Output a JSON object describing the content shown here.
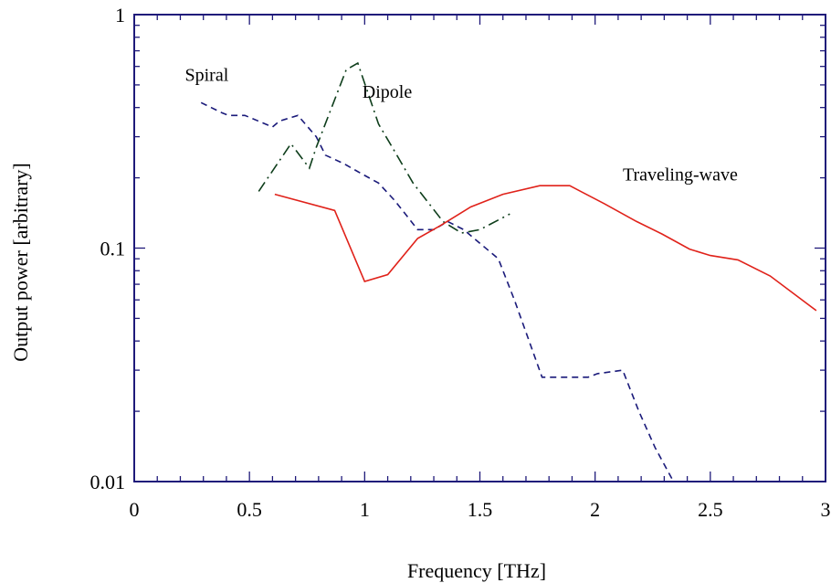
{
  "chart_data": {
    "type": "line",
    "title": "",
    "xlabel": "Frequency [THz]",
    "ylabel": "Output power [arbitrary]",
    "xlim": [
      0,
      3
    ],
    "ylim": [
      0.01,
      1
    ],
    "yscale": "log",
    "grid": false,
    "x_ticks": [
      {
        "v": 0,
        "label": "0"
      },
      {
        "v": 0.5,
        "label": "0.5"
      },
      {
        "v": 1,
        "label": "1"
      },
      {
        "v": 1.5,
        "label": "1.5"
      },
      {
        "v": 2,
        "label": "2"
      },
      {
        "v": 2.5,
        "label": "2.5"
      },
      {
        "v": 3,
        "label": "3"
      }
    ],
    "y_ticks": [
      {
        "v": 0.01,
        "label": "0.01"
      },
      {
        "v": 0.1,
        "label": "0.1"
      },
      {
        "v": 1,
        "label": "1"
      }
    ],
    "series": [
      {
        "name": "Spiral",
        "color": "#1a1a7a",
        "dash": "dashed",
        "x": [
          0.29,
          0.38,
          0.41,
          0.48,
          0.51,
          0.6,
          0.63,
          0.71,
          0.79,
          0.83,
          0.91,
          0.98,
          1.06,
          1.13,
          1.23,
          1.3,
          1.36,
          1.43,
          1.58,
          1.65,
          1.77,
          1.97,
          2.01,
          2.12,
          2.19,
          2.26,
          2.34
        ],
        "y": [
          0.42,
          0.38,
          0.37,
          0.37,
          0.36,
          0.33,
          0.35,
          0.37,
          0.3,
          0.25,
          0.23,
          0.21,
          0.19,
          0.16,
          0.12,
          0.12,
          0.13,
          0.12,
          0.09,
          0.06,
          0.028,
          0.028,
          0.029,
          0.03,
          0.02,
          0.014,
          0.01
        ]
      },
      {
        "name": "Dipole",
        "color": "#0d3d1a",
        "dash": "dashdot",
        "x": [
          0.54,
          0.68,
          0.76,
          0.79,
          0.92,
          0.97,
          1.06,
          1.13,
          1.21,
          1.34,
          1.42,
          1.5,
          1.63
        ],
        "y": [
          0.175,
          0.28,
          0.22,
          0.27,
          0.58,
          0.62,
          0.34,
          0.26,
          0.19,
          0.13,
          0.116,
          0.12,
          0.14
        ]
      },
      {
        "name": "Traveling-wave",
        "color": "#e0221a",
        "dash": "solid",
        "x": [
          0.61,
          0.87,
          1.0,
          1.1,
          1.23,
          1.33,
          1.46,
          1.6,
          1.76,
          1.89,
          2.04,
          2.18,
          2.29,
          2.41,
          2.5,
          2.62,
          2.76,
          2.96
        ],
        "y": [
          0.17,
          0.145,
          0.072,
          0.077,
          0.11,
          0.125,
          0.15,
          0.17,
          0.185,
          0.185,
          0.155,
          0.13,
          0.115,
          0.099,
          0.093,
          0.089,
          0.076,
          0.054
        ]
      }
    ],
    "annotations": [
      {
        "text": "Spiral",
        "x": 0.22,
        "y": 0.52
      },
      {
        "text": "Dipole",
        "x": 0.99,
        "y": 0.44
      },
      {
        "text": "Traveling-wave",
        "x": 2.12,
        "y": 0.195
      }
    ],
    "axis_color": "#1f1a7a"
  }
}
